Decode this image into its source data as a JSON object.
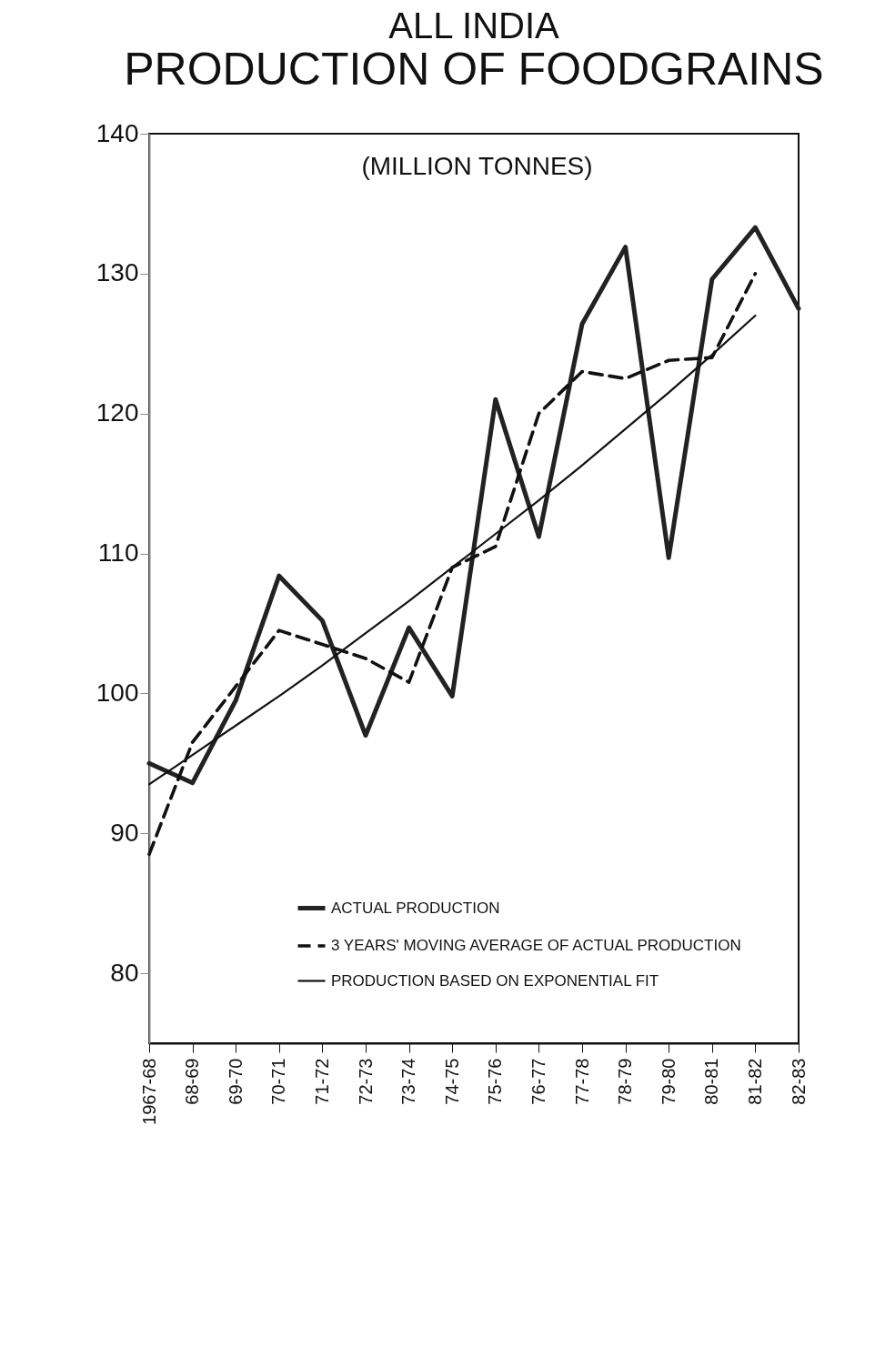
{
  "chart_data": {
    "type": "line",
    "title": "ALL INDIA",
    "subtitle": "PRODUCTION OF FOODGRAINS",
    "ylabel": "(MILLION TONNES)",
    "categories": [
      "1967-68",
      "68-69",
      "69-70",
      "70-71",
      "71-72",
      "72-73",
      "73-74",
      "74-75",
      "75-76",
      "76-77",
      "77-78",
      "78-79",
      "79-80",
      "80-81",
      "81-82",
      "82-83"
    ],
    "series": [
      {
        "name": "ACTUAL PRODUCTION",
        "color": "#222222",
        "line_style": "solid",
        "values": [
          95.0,
          93.6,
          99.5,
          108.4,
          105.2,
          97.0,
          104.7,
          99.8,
          121.0,
          111.2,
          126.4,
          131.9,
          109.7,
          129.6,
          133.3,
          127.5
        ]
      },
      {
        "name": "3 YEARS' MOVING AVERAGE OF ACTUAL PRODUCTION",
        "color": "#111111",
        "line_style": "dashed",
        "values": [
          88.5,
          96.5,
          100.5,
          104.5,
          103.5,
          102.5,
          100.8,
          109.0,
          110.5,
          120.0,
          123.0,
          122.5,
          123.8,
          124.0,
          130.0,
          null
        ]
      },
      {
        "name": "PRODUCTION BASED ON EXPONENTIAL FIT",
        "color": "#111111",
        "line_style": "solid",
        "values": [
          93.5,
          95.6,
          97.7,
          99.8,
          102.0,
          104.3,
          106.6,
          109.0,
          111.4,
          113.8,
          116.3,
          118.9,
          121.5,
          124.2,
          127.0,
          null
        ]
      }
    ],
    "ylim": [
      75,
      140
    ],
    "yticks": [
      80,
      90,
      100,
      110,
      120,
      130,
      140
    ],
    "grid": false,
    "legend": "bottom right",
    "marker": "none"
  }
}
